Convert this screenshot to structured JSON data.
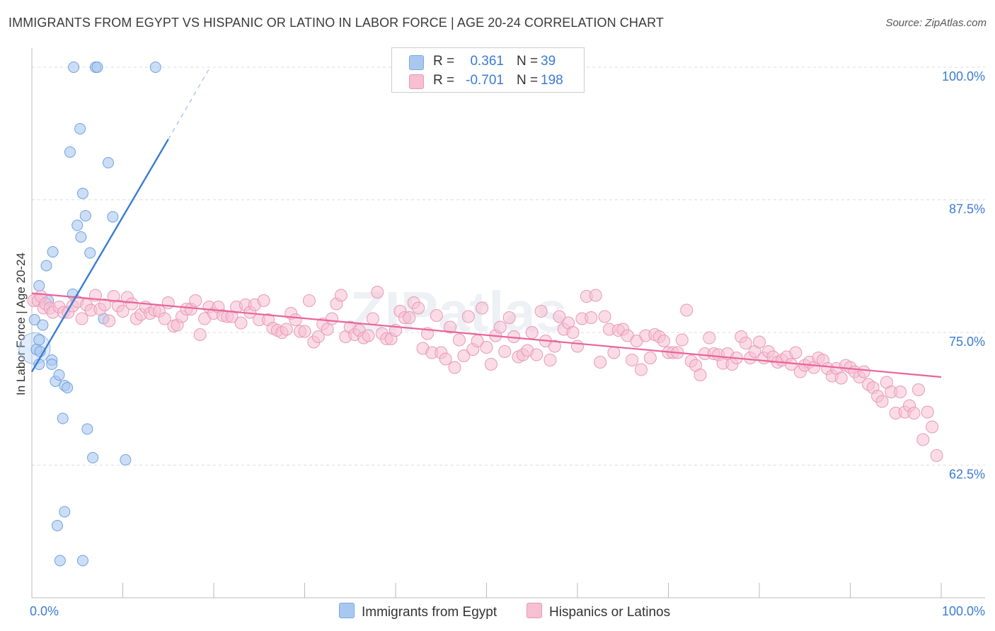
{
  "title": "IMMIGRANTS FROM EGYPT VS HISPANIC OR LATINO IN LABOR FORCE | AGE 20-24 CORRELATION CHART",
  "source": "Source: ZipAtlas.com",
  "watermark": "ZIPatlas",
  "colors": {
    "blue": "#3a7bd5",
    "blue_fill": "#a9c8f0",
    "pink": "#e8649a",
    "pink_fill": "#f7bfd2",
    "grid": "#dddddd",
    "tick_label": "#3a7bd5"
  },
  "legend": {
    "rows": [
      {
        "r_label": "R =",
        "r_value": "0.361",
        "n_label": "N =",
        "n_value": "39"
      },
      {
        "r_label": "R =",
        "r_value": "-0.701",
        "n_label": "N =",
        "n_value": "198"
      }
    ]
  },
  "bottom_legend": {
    "series1": "Immigrants from Egypt",
    "series2": "Hispanics or Latinos"
  },
  "chart_data": {
    "type": "scatter",
    "title": "IMMIGRANTS FROM EGYPT VS HISPANIC OR LATINO IN LABOR FORCE | AGE 20-24 CORRELATION CHART",
    "xlabel": "",
    "ylabel": "In Labor Force | Age 20-24",
    "xlim": [
      0,
      100
    ],
    "ylim": [
      50,
      101
    ],
    "x_tick_labels": [
      "0.0%",
      "100.0%"
    ],
    "y_ticks": [
      62.5,
      75.0,
      87.5,
      100.0
    ],
    "y_tick_labels": [
      "62.5%",
      "75.0%",
      "87.5%",
      "100.0%"
    ],
    "grid": true,
    "legend_position": "top-center",
    "series": [
      {
        "name": "Immigrants from Egypt",
        "color": "#a9c8f0",
        "stat": {
          "R": 0.361,
          "N": 39
        },
        "trend": {
          "x0": 0.0,
          "y0": 71.3,
          "x1": 15.0,
          "y1": 93.2,
          "dash_to_x": 19.6,
          "dash_to_y": 100.0
        },
        "points": [
          [
            4.6,
            100
          ],
          [
            7.0,
            100
          ],
          [
            7.2,
            100
          ],
          [
            13.6,
            100
          ],
          [
            5.3,
            94.2
          ],
          [
            4.2,
            92.0
          ],
          [
            8.4,
            91.0
          ],
          [
            5.6,
            88.1
          ],
          [
            5.9,
            86.0
          ],
          [
            8.9,
            85.9
          ],
          [
            5.0,
            85.1
          ],
          [
            5.4,
            84.0
          ],
          [
            6.4,
            82.5
          ],
          [
            2.3,
            82.6
          ],
          [
            1.6,
            81.3
          ],
          [
            0.8,
            79.4
          ],
          [
            4.5,
            78.6
          ],
          [
            1.8,
            78.0
          ],
          [
            0.3,
            76.2
          ],
          [
            7.9,
            76.3
          ],
          [
            1.2,
            75.7
          ],
          [
            0.8,
            74.3
          ],
          [
            0.5,
            73.4
          ],
          [
            0.9,
            73.2
          ],
          [
            2.2,
            72.4
          ],
          [
            2.2,
            72.0
          ],
          [
            0.8,
            72.0
          ],
          [
            2.6,
            70.4
          ],
          [
            3.0,
            71.0
          ],
          [
            3.6,
            70.0
          ],
          [
            3.9,
            69.8
          ],
          [
            3.4,
            66.9
          ],
          [
            6.1,
            65.9
          ],
          [
            6.7,
            63.2
          ],
          [
            10.3,
            63.0
          ],
          [
            3.6,
            58.1
          ],
          [
            2.8,
            56.8
          ],
          [
            3.1,
            53.5
          ],
          [
            5.6,
            53.5
          ]
        ]
      },
      {
        "name": "Hispanics or Latinos",
        "color": "#f7bfd2",
        "stat": {
          "R": -0.701,
          "N": 198
        },
        "trend": {
          "x0": 0.0,
          "y0": 78.7,
          "x1": 100.0,
          "y1": 70.8
        },
        "points": [
          [
            0.2,
            78
          ],
          [
            0.7,
            78
          ],
          [
            1.0,
            78.4
          ],
          [
            1.3,
            77.3
          ],
          [
            1.5,
            77.7
          ],
          [
            2.0,
            77.3
          ],
          [
            2.3,
            76.9
          ],
          [
            3.0,
            77.4
          ],
          [
            3.5,
            76.9
          ],
          [
            4.0,
            76.9
          ],
          [
            4.5,
            77.5
          ],
          [
            5.0,
            77.9
          ],
          [
            5.5,
            76.3
          ],
          [
            6.0,
            77.6
          ],
          [
            6.5,
            77.1
          ],
          [
            7.0,
            78.5
          ],
          [
            7.5,
            77.2
          ],
          [
            8.0,
            77.6
          ],
          [
            8.5,
            76.1
          ],
          [
            9.0,
            78.4
          ],
          [
            9.5,
            77.5
          ],
          [
            10.0,
            77.0
          ],
          [
            10.5,
            78.3
          ],
          [
            11.0,
            77.7
          ],
          [
            11.5,
            76.3
          ],
          [
            12.0,
            76.7
          ],
          [
            12.5,
            77.4
          ],
          [
            13.0,
            76.8
          ],
          [
            13.5,
            77.1
          ],
          [
            14.0,
            77.0
          ],
          [
            14.6,
            76.3
          ],
          [
            15.0,
            77.8
          ],
          [
            15.6,
            75.6
          ],
          [
            16.0,
            75.7
          ],
          [
            16.5,
            76.5
          ],
          [
            17.0,
            77.2
          ],
          [
            17.5,
            77.2
          ],
          [
            18.0,
            78.0
          ],
          [
            18.5,
            74.8
          ],
          [
            19.0,
            76.3
          ],
          [
            19.5,
            77.4
          ],
          [
            20.0,
            76.8
          ],
          [
            20.5,
            77.4
          ],
          [
            21.0,
            76.6
          ],
          [
            21.5,
            76.5
          ],
          [
            22.0,
            76.5
          ],
          [
            22.5,
            77.4
          ],
          [
            23.0,
            75.9
          ],
          [
            23.5,
            77.6
          ],
          [
            24.0,
            76.9
          ],
          [
            24.5,
            77.6
          ],
          [
            25.0,
            76.2
          ],
          [
            25.5,
            78.0
          ],
          [
            26.0,
            76.2
          ],
          [
            26.5,
            75.4
          ],
          [
            27.0,
            75.2
          ],
          [
            27.5,
            75.0
          ],
          [
            28.0,
            75.3
          ],
          [
            28.5,
            76.8
          ],
          [
            29.0,
            76.2
          ],
          [
            29.5,
            75.1
          ],
          [
            30.0,
            75.1
          ],
          [
            30.5,
            78.0
          ],
          [
            31.0,
            74.1
          ],
          [
            31.5,
            74.6
          ],
          [
            32.0,
            75.8
          ],
          [
            32.5,
            75.3
          ],
          [
            33.0,
            76.3
          ],
          [
            33.5,
            77.7
          ],
          [
            34.0,
            78.5
          ],
          [
            34.5,
            74.6
          ],
          [
            35.0,
            75.5
          ],
          [
            35.5,
            74.8
          ],
          [
            36.0,
            75.2
          ],
          [
            36.5,
            74.5
          ],
          [
            37.0,
            74.7
          ],
          [
            37.5,
            76.3
          ],
          [
            38.0,
            78.8
          ],
          [
            38.5,
            74.9
          ],
          [
            39.0,
            74.4
          ],
          [
            39.5,
            74.4
          ],
          [
            40.0,
            75.2
          ],
          [
            40.5,
            77.0
          ],
          [
            41.0,
            76.4
          ],
          [
            41.5,
            76.4
          ],
          [
            42.0,
            77.8
          ],
          [
            42.5,
            77.3
          ],
          [
            43.0,
            73.5
          ],
          [
            43.5,
            74.9
          ],
          [
            44.0,
            73.1
          ],
          [
            44.5,
            76.6
          ],
          [
            45.0,
            73.1
          ],
          [
            45.5,
            72.5
          ],
          [
            46.0,
            75.5
          ],
          [
            46.5,
            71.7
          ],
          [
            47.0,
            74.3
          ],
          [
            47.5,
            72.8
          ],
          [
            48.0,
            76.5
          ],
          [
            48.5,
            73.4
          ],
          [
            49.0,
            74.2
          ],
          [
            49.5,
            77.3
          ],
          [
            50.0,
            73.6
          ],
          [
            50.5,
            72.0
          ],
          [
            51.0,
            74.7
          ],
          [
            51.5,
            75.5
          ],
          [
            52.0,
            73.2
          ],
          [
            52.5,
            76.4
          ],
          [
            53.0,
            74.6
          ],
          [
            53.5,
            72.7
          ],
          [
            54.0,
            72.9
          ],
          [
            54.5,
            73.3
          ],
          [
            55.0,
            75.0
          ],
          [
            55.5,
            72.9
          ],
          [
            56.0,
            77.0
          ],
          [
            56.5,
            74.2
          ],
          [
            57.0,
            72.4
          ],
          [
            57.5,
            73.7
          ],
          [
            58.0,
            76.5
          ],
          [
            58.5,
            75.3
          ],
          [
            59.0,
            75.9
          ],
          [
            59.5,
            75.0
          ],
          [
            60.0,
            73.7
          ],
          [
            60.5,
            76.3
          ],
          [
            61.0,
            78.4
          ],
          [
            61.5,
            76.4
          ],
          [
            62.0,
            78.5
          ],
          [
            62.5,
            72.2
          ],
          [
            63.0,
            76.5
          ],
          [
            63.5,
            75.3
          ],
          [
            64.0,
            73.1
          ],
          [
            64.5,
            75.2
          ],
          [
            65.0,
            75.3
          ],
          [
            65.5,
            74.7
          ],
          [
            66.0,
            72.4
          ],
          [
            66.5,
            74.2
          ],
          [
            67.0,
            71.5
          ],
          [
            67.5,
            74.7
          ],
          [
            68.0,
            72.6
          ],
          [
            68.5,
            74.8
          ],
          [
            69.0,
            74.6
          ],
          [
            69.5,
            74.2
          ],
          [
            70.0,
            73.1
          ],
          [
            70.5,
            73.1
          ],
          [
            71.0,
            73.1
          ],
          [
            71.5,
            74.3
          ],
          [
            72.0,
            77.1
          ],
          [
            72.5,
            72.3
          ],
          [
            73.0,
            71.9
          ],
          [
            73.5,
            71.0
          ],
          [
            74.0,
            73.0
          ],
          [
            74.5,
            74.5
          ],
          [
            75.0,
            73.0
          ],
          [
            75.5,
            72.9
          ],
          [
            76.0,
            72.1
          ],
          [
            76.5,
            73.0
          ],
          [
            77.0,
            72.0
          ],
          [
            77.5,
            72.6
          ],
          [
            78.0,
            74.6
          ],
          [
            78.5,
            74.0
          ],
          [
            79.0,
            72.6
          ],
          [
            79.5,
            73.2
          ],
          [
            80.0,
            74.1
          ],
          [
            80.5,
            72.6
          ],
          [
            81.0,
            73.2
          ],
          [
            81.5,
            72.7
          ],
          [
            82.0,
            72.2
          ],
          [
            82.5,
            72.4
          ],
          [
            83.0,
            72.7
          ],
          [
            83.5,
            72.0
          ],
          [
            84.0,
            73.1
          ],
          [
            84.5,
            71.3
          ],
          [
            85.0,
            71.9
          ],
          [
            85.5,
            72.2
          ],
          [
            86.0,
            71.7
          ],
          [
            86.5,
            72.6
          ],
          [
            87.0,
            72.4
          ],
          [
            87.5,
            71.6
          ],
          [
            88.0,
            70.9
          ],
          [
            88.5,
            71.6
          ],
          [
            89.0,
            70.7
          ],
          [
            89.5,
            71.9
          ],
          [
            90.0,
            71.7
          ],
          [
            90.5,
            71.3
          ],
          [
            91.0,
            70.8
          ],
          [
            91.5,
            71.3
          ],
          [
            92.0,
            70.1
          ],
          [
            92.5,
            69.8
          ],
          [
            93.0,
            69.0
          ],
          [
            93.5,
            68.5
          ],
          [
            94.0,
            70.3
          ],
          [
            94.5,
            69.4
          ],
          [
            95.0,
            67.4
          ],
          [
            95.5,
            69.4
          ],
          [
            96.0,
            67.5
          ],
          [
            96.5,
            68.1
          ],
          [
            97.0,
            67.4
          ],
          [
            97.5,
            69.6
          ],
          [
            98.0,
            64.9
          ],
          [
            98.5,
            67.5
          ],
          [
            99.0,
            66.1
          ],
          [
            99.5,
            63.4
          ]
        ]
      }
    ]
  }
}
